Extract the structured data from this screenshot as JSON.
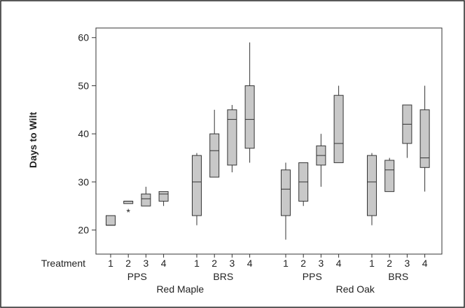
{
  "chart_data": {
    "type": "boxplot",
    "ylabel": "Days to Wilt",
    "row_label": "Treatment",
    "ylim": [
      15,
      62
    ],
    "yticks": [
      20,
      30,
      40,
      50,
      60
    ],
    "grid": false,
    "colors": {
      "box_fill": "#c8c8c8",
      "stroke": "#333333",
      "background": "#ffffff"
    },
    "groups": [
      {
        "name": "Red Maple",
        "subgroups": [
          "PPS",
          "BRS"
        ]
      },
      {
        "name": "Red Oak",
        "subgroups": [
          "PPS",
          "BRS"
        ]
      }
    ],
    "boxes": [
      {
        "species": "Red Maple",
        "site": "PPS",
        "treatment": "1",
        "min": 21,
        "q1": 21,
        "median": 21,
        "q3": 23,
        "max": 23,
        "outliers": []
      },
      {
        "species": "Red Maple",
        "site": "PPS",
        "treatment": "2",
        "min": 25.5,
        "q1": 25.5,
        "median": 26,
        "q3": 26,
        "max": 26,
        "outliers": [
          24
        ]
      },
      {
        "species": "Red Maple",
        "site": "PPS",
        "treatment": "3",
        "min": 25,
        "q1": 25,
        "median": 26.5,
        "q3": 27.5,
        "max": 29,
        "outliers": []
      },
      {
        "species": "Red Maple",
        "site": "PPS",
        "treatment": "4",
        "min": 25,
        "q1": 26,
        "median": 27.5,
        "q3": 28,
        "max": 28,
        "outliers": []
      },
      {
        "species": "Red Maple",
        "site": "BRS",
        "treatment": "1",
        "min": 21,
        "q1": 23,
        "median": 30,
        "q3": 35.5,
        "max": 36,
        "outliers": []
      },
      {
        "species": "Red Maple",
        "site": "BRS",
        "treatment": "2",
        "min": 31,
        "q1": 31,
        "median": 36.5,
        "q3": 40,
        "max": 45,
        "outliers": []
      },
      {
        "species": "Red Maple",
        "site": "BRS",
        "treatment": "3",
        "min": 32,
        "q1": 33.5,
        "median": 43,
        "q3": 45,
        "max": 46,
        "outliers": []
      },
      {
        "species": "Red Maple",
        "site": "BRS",
        "treatment": "4",
        "min": 34,
        "q1": 37,
        "median": 43,
        "q3": 50,
        "max": 59,
        "outliers": []
      },
      {
        "species": "Red Oak",
        "site": "PPS",
        "treatment": "1",
        "min": 18,
        "q1": 23,
        "median": 28.5,
        "q3": 32.5,
        "max": 34,
        "outliers": []
      },
      {
        "species": "Red Oak",
        "site": "PPS",
        "treatment": "2",
        "min": 25,
        "q1": 26,
        "median": 30,
        "q3": 34,
        "max": 34,
        "outliers": []
      },
      {
        "species": "Red Oak",
        "site": "PPS",
        "treatment": "3",
        "min": 29,
        "q1": 33.5,
        "median": 35.5,
        "q3": 37.5,
        "max": 40,
        "outliers": []
      },
      {
        "species": "Red Oak",
        "site": "PPS",
        "treatment": "4",
        "min": 34,
        "q1": 34,
        "median": 38,
        "q3": 48,
        "max": 50,
        "outliers": []
      },
      {
        "species": "Red Oak",
        "site": "BRS",
        "treatment": "1",
        "min": 21,
        "q1": 23,
        "median": 30,
        "q3": 35.5,
        "max": 36,
        "outliers": []
      },
      {
        "species": "Red Oak",
        "site": "BRS",
        "treatment": "2",
        "min": 28,
        "q1": 28,
        "median": 32.5,
        "q3": 34.5,
        "max": 35,
        "outliers": []
      },
      {
        "species": "Red Oak",
        "site": "BRS",
        "treatment": "3",
        "min": 35,
        "q1": 38,
        "median": 42,
        "q3": 46,
        "max": 46,
        "outliers": []
      },
      {
        "species": "Red Oak",
        "site": "BRS",
        "treatment": "4",
        "min": 28,
        "q1": 33,
        "median": 35,
        "q3": 45,
        "max": 50,
        "outliers": []
      }
    ]
  }
}
